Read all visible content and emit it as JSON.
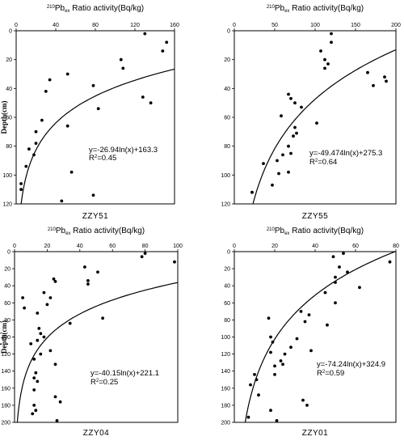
{
  "chart_data": [
    {
      "type": "scatter",
      "panel": "ZZY51",
      "title_iso": "210",
      "title_main": "Pb",
      "title_sub": "ex",
      "title_rest": " Ratio activity(Bq/kg)",
      "ylabel": "Depth(cm)",
      "xlim": [
        0,
        160
      ],
      "ylim": [
        0,
        120
      ],
      "xticks": [
        0,
        40,
        80,
        120,
        160
      ],
      "yticks": [
        0,
        20,
        40,
        60,
        80,
        100,
        120
      ],
      "equation": "y=-26.94ln(x)+163.3",
      "r2_label": "R",
      "r2_exp": "2",
      "r2_value": "=0.45",
      "fit": {
        "a": -26.94,
        "b": 163.3
      },
      "points": [
        [
          130,
          2
        ],
        [
          152,
          8
        ],
        [
          148,
          14
        ],
        [
          106,
          20
        ],
        [
          108,
          26
        ],
        [
          34,
          34
        ],
        [
          30,
          42
        ],
        [
          52,
          30
        ],
        [
          136,
          50
        ],
        [
          83,
          54
        ],
        [
          78,
          38
        ],
        [
          128,
          46
        ],
        [
          26,
          62
        ],
        [
          52,
          66
        ],
        [
          20,
          70
        ],
        [
          20,
          78
        ],
        [
          13,
          82
        ],
        [
          18,
          86
        ],
        [
          10,
          94
        ],
        [
          56,
          98
        ],
        [
          5,
          106
        ],
        [
          5,
          110
        ],
        [
          78,
          114
        ],
        [
          46,
          118
        ]
      ]
    },
    {
      "type": "scatter",
      "panel": "ZZY55",
      "title_iso": "210",
      "title_main": "Pb",
      "title_sub": "ex",
      "title_rest": " Ratio activity(Bq/kg)",
      "ylabel": "",
      "xlim": [
        0,
        200
      ],
      "ylim": [
        0,
        120
      ],
      "xticks": [
        0,
        50,
        100,
        150,
        200
      ],
      "yticks": [
        0,
        20,
        40,
        60,
        80,
        100,
        120
      ],
      "equation": "y=-49.474ln(x)+275.3",
      "r2_label": "R",
      "r2_exp": "2",
      "r2_value": "=0.64",
      "fit": {
        "a": -49.474,
        "b": 275.3
      },
      "points": [
        [
          120,
          2
        ],
        [
          120,
          8
        ],
        [
          107,
          14
        ],
        [
          112,
          20
        ],
        [
          116,
          23
        ],
        [
          112,
          26
        ],
        [
          165,
          29
        ],
        [
          186,
          32
        ],
        [
          188,
          35
        ],
        [
          172,
          38
        ],
        [
          67,
          44
        ],
        [
          75,
          50
        ],
        [
          83,
          53
        ],
        [
          70,
          47
        ],
        [
          102,
          64
        ],
        [
          58,
          59
        ],
        [
          75,
          67
        ],
        [
          73,
          73
        ],
        [
          67,
          80
        ],
        [
          77,
          71
        ],
        [
          70,
          85
        ],
        [
          60,
          86
        ],
        [
          53,
          90
        ],
        [
          67,
          98
        ],
        [
          55,
          99
        ],
        [
          47,
          107
        ],
        [
          36,
          92
        ],
        [
          22,
          112
        ]
      ]
    },
    {
      "type": "scatter",
      "panel": "ZZY04",
      "title_iso": "210",
      "title_main": "Pb",
      "title_sub": "ex",
      "title_rest": " Ratio activity(Bq/kg)",
      "ylabel": "Depth(cm)",
      "xlim": [
        0,
        100
      ],
      "ylim": [
        0,
        200
      ],
      "xticks": [
        0,
        20,
        40,
        60,
        80,
        100
      ],
      "yticks": [
        0,
        20,
        40,
        60,
        80,
        100,
        120,
        140,
        160,
        180,
        200
      ],
      "equation": "y=-40.15ln(x)+221.1",
      "r2_label": "R",
      "r2_exp": "2",
      "r2_value": "=0.25",
      "fit": {
        "a": -40.15,
        "b": 221.1
      },
      "points": [
        [
          98,
          12
        ],
        [
          80,
          2
        ],
        [
          78,
          6
        ],
        [
          51,
          24
        ],
        [
          43,
          18
        ],
        [
          45,
          34
        ],
        [
          45,
          38
        ],
        [
          24,
          32
        ],
        [
          25,
          35
        ],
        [
          22,
          54
        ],
        [
          18,
          48
        ],
        [
          20,
          62
        ],
        [
          5,
          54
        ],
        [
          6,
          66
        ],
        [
          14,
          72
        ],
        [
          34,
          84
        ],
        [
          15,
          90
        ],
        [
          54,
          78
        ],
        [
          16,
          96
        ],
        [
          14,
          104
        ],
        [
          18,
          100
        ],
        [
          10,
          108
        ],
        [
          12,
          126
        ],
        [
          22,
          116
        ],
        [
          16,
          120
        ],
        [
          13,
          142
        ],
        [
          25,
          132
        ],
        [
          12,
          148
        ],
        [
          14,
          152
        ],
        [
          12,
          162
        ],
        [
          25,
          170
        ],
        [
          28,
          176
        ],
        [
          12,
          180
        ],
        [
          13,
          186
        ],
        [
          11,
          190
        ],
        [
          26,
          198
        ]
      ]
    },
    {
      "type": "scatter",
      "panel": "ZZY01",
      "title_iso": "210",
      "title_main": "Pb",
      "title_sub": "ex",
      "title_rest": " Ratio activity(Bq/kg)",
      "ylabel": "Depth(cm)",
      "xlim": [
        0,
        80
      ],
      "ylim": [
        0,
        200
      ],
      "xticks": [
        0,
        20,
        40,
        60,
        80
      ],
      "yticks": [
        0,
        20,
        40,
        60,
        80,
        100,
        120,
        140,
        160,
        180,
        200
      ],
      "equation": "y=-74.24ln(x)+324.9",
      "r2_label": "R",
      "r2_exp": "2",
      "r2_value": "=0.59",
      "fit": {
        "a": -74.24,
        "b": 324.9
      },
      "points": [
        [
          77,
          12
        ],
        [
          54,
          2
        ],
        [
          49,
          6
        ],
        [
          52,
          18
        ],
        [
          56,
          24
        ],
        [
          50,
          30
        ],
        [
          50,
          36
        ],
        [
          62,
          42
        ],
        [
          45,
          48
        ],
        [
          50,
          60
        ],
        [
          33,
          70
        ],
        [
          37,
          74
        ],
        [
          46,
          86
        ],
        [
          35,
          82
        ],
        [
          38,
          116
        ],
        [
          31,
          102
        ],
        [
          28,
          112
        ],
        [
          25,
          120
        ],
        [
          23,
          128
        ],
        [
          24,
          132
        ],
        [
          19,
          106
        ],
        [
          18,
          118
        ],
        [
          17,
          78
        ],
        [
          18,
          100
        ],
        [
          20,
          134
        ],
        [
          20,
          144
        ],
        [
          10,
          144
        ],
        [
          11,
          150
        ],
        [
          8,
          156
        ],
        [
          12,
          168
        ],
        [
          34,
          174
        ],
        [
          36,
          180
        ],
        [
          18,
          186
        ],
        [
          7,
          194
        ],
        [
          21,
          198
        ]
      ]
    }
  ]
}
